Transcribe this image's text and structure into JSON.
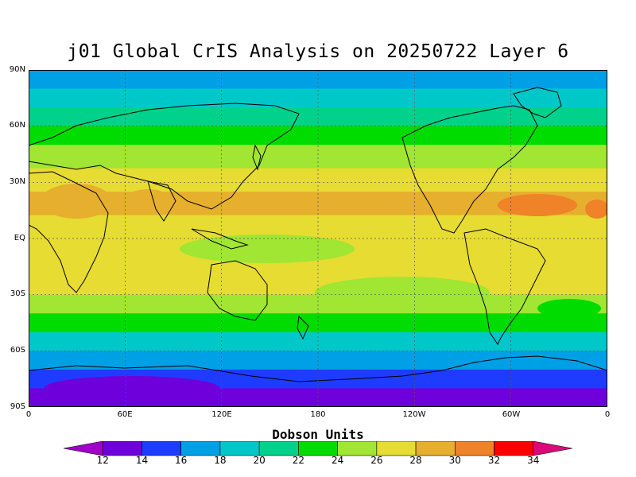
{
  "title": "j01 Global CrIS Analysis on 20250722 Layer 6",
  "lat_labels": [
    "90N",
    "60N",
    "30N",
    "EQ",
    "30S",
    "60S",
    "90S"
  ],
  "lon_labels": [
    "0",
    "60E",
    "120E",
    "180",
    "120W",
    "60W",
    "0"
  ],
  "colorbar": {
    "title": "Dobson Units",
    "labels": [
      "12",
      "14",
      "16",
      "18",
      "20",
      "22",
      "24",
      "26",
      "28",
      "30",
      "32",
      "34"
    ],
    "colors": [
      "#a100c8",
      "#6e00dc",
      "#1e3cff",
      "#00a0e6",
      "#00c8c8",
      "#00d28c",
      "#00dc00",
      "#a0e632",
      "#e6dc32",
      "#e6af2d",
      "#f08228",
      "#fa0000",
      "#dc0a78"
    ]
  },
  "map_data": {
    "type": "filled-contour-map",
    "projection": "equirectangular",
    "lat_range": [
      -90,
      90
    ],
    "lon_range": [
      0,
      360
    ],
    "grid_lines": true,
    "units": "Dobson Units",
    "value_bands_by_latitude": [
      {
        "lat": 85,
        "value": 17
      },
      {
        "lat": 75,
        "value": 19
      },
      {
        "lat": 65,
        "value": 21
      },
      {
        "lat": 55,
        "value": 23
      },
      {
        "lat": 45,
        "value": 25
      },
      {
        "lat": 30,
        "value": 26
      },
      {
        "lat": 20,
        "value": 28
      },
      {
        "lat": 5,
        "value": 27
      },
      {
        "lat": -10,
        "value": 27
      },
      {
        "lat": -25,
        "value": 26
      },
      {
        "lat": -35,
        "value": 24
      },
      {
        "lat": -45,
        "value": 22
      },
      {
        "lat": -55,
        "value": 18
      },
      {
        "lat": -65,
        "value": 16
      },
      {
        "lat": -75,
        "value": 14
      },
      {
        "lat": -85,
        "value": 13
      }
    ]
  }
}
